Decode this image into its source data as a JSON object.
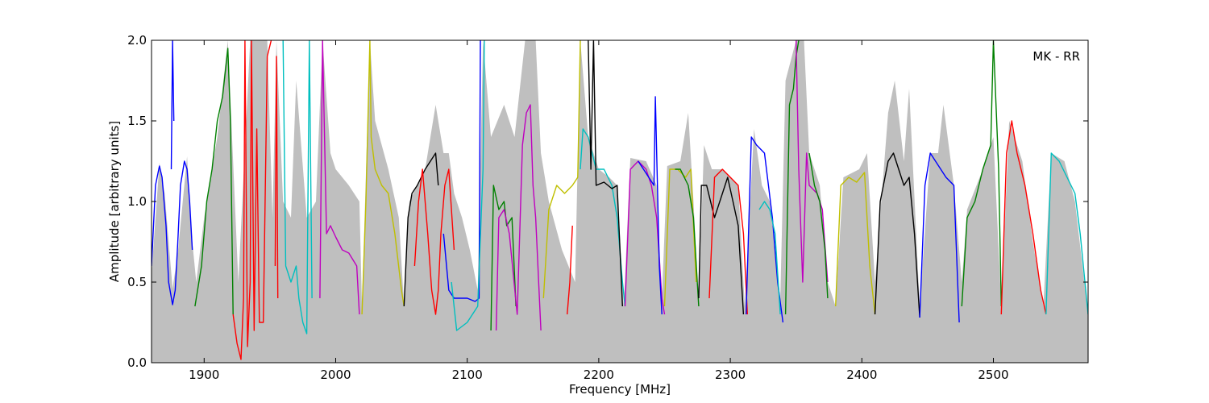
{
  "chart_data": {
    "type": "line",
    "title": "",
    "xlabel": "Frequency [MHz]",
    "ylabel": "Amplitude [arbitrary units]",
    "xlim": [
      1860,
      2572
    ],
    "ylim": [
      0.0,
      2.0
    ],
    "xticks": [
      1900,
      2000,
      2100,
      2200,
      2300,
      2400,
      2500
    ],
    "yticks": [
      0.0,
      0.5,
      1.0,
      1.5,
      2.0
    ],
    "xtick_labels": [
      "1900",
      "2000",
      "2100",
      "2200",
      "2300",
      "2400",
      "2500"
    ],
    "ytick_labels": [
      "0.0",
      "0.5",
      "1.0",
      "1.5",
      "2.0"
    ],
    "annotation": "MK - RR",
    "annotation_position": "top-right",
    "grid": false,
    "legend": "none",
    "envelope_color": "#bfbfbf",
    "envelope": [
      [
        1860,
        0.55
      ],
      [
        1866,
        1.24
      ],
      [
        1870,
        1.05
      ],
      [
        1876,
        0.46
      ],
      [
        1880,
        0.68
      ],
      [
        1887,
        1.28
      ],
      [
        1891,
        0.75
      ],
      [
        1894,
        0.5
      ],
      [
        1900,
        0.9
      ],
      [
        1910,
        1.4
      ],
      [
        1918,
        2.0
      ],
      [
        1926,
        0.5
      ],
      [
        1935,
        2.0
      ],
      [
        1948,
        2.0
      ],
      [
        1952,
        0.9
      ],
      [
        1955,
        2.0
      ],
      [
        1960,
        1.0
      ],
      [
        1966,
        0.9
      ],
      [
        1970,
        1.75
      ],
      [
        1978,
        0.9
      ],
      [
        1985,
        1.0
      ],
      [
        1990,
        2.0
      ],
      [
        1996,
        1.3
      ],
      [
        2000,
        1.2
      ],
      [
        2010,
        1.1
      ],
      [
        2018,
        1.0
      ],
      [
        2020,
        0.35
      ],
      [
        2026,
        2.0
      ],
      [
        2030,
        1.5
      ],
      [
        2040,
        1.2
      ],
      [
        2048,
        0.9
      ],
      [
        2052,
        0.35
      ],
      [
        2056,
        1.0
      ],
      [
        2062,
        1.1
      ],
      [
        2068,
        1.2
      ],
      [
        2076,
        1.6
      ],
      [
        2082,
        1.3
      ],
      [
        2086,
        1.3
      ],
      [
        2090,
        1.05
      ],
      [
        2096,
        0.9
      ],
      [
        2102,
        0.7
      ],
      [
        2108,
        0.45
      ],
      [
        2112,
        2.0
      ],
      [
        2118,
        1.4
      ],
      [
        2128,
        1.6
      ],
      [
        2136,
        1.4
      ],
      [
        2144,
        2.0
      ],
      [
        2152,
        2.0
      ],
      [
        2156,
        1.3
      ],
      [
        2162,
        1.0
      ],
      [
        2172,
        0.7
      ],
      [
        2182,
        0.5
      ],
      [
        2186,
        2.0
      ],
      [
        2192,
        1.4
      ],
      [
        2200,
        1.2
      ],
      [
        2208,
        1.15
      ],
      [
        2214,
        1.1
      ],
      [
        2219,
        0.35
      ],
      [
        2224,
        1.27
      ],
      [
        2236,
        1.25
      ],
      [
        2244,
        1.1
      ],
      [
        2248,
        0.4
      ],
      [
        2252,
        1.22
      ],
      [
        2262,
        1.25
      ],
      [
        2268,
        1.55
      ],
      [
        2272,
        1.0
      ],
      [
        2276,
        0.35
      ],
      [
        2280,
        1.35
      ],
      [
        2286,
        1.2
      ],
      [
        2294,
        1.2
      ],
      [
        2300,
        1.15
      ],
      [
        2306,
        1.1
      ],
      [
        2311,
        0.35
      ],
      [
        2318,
        1.45
      ],
      [
        2324,
        1.1
      ],
      [
        2330,
        1.0
      ],
      [
        2338,
        0.4
      ],
      [
        2342,
        1.75
      ],
      [
        2350,
        2.0
      ],
      [
        2356,
        2.0
      ],
      [
        2360,
        1.3
      ],
      [
        2368,
        1.1
      ],
      [
        2374,
        0.5
      ],
      [
        2380,
        0.35
      ],
      [
        2386,
        1.15
      ],
      [
        2398,
        1.2
      ],
      [
        2404,
        1.3
      ],
      [
        2410,
        0.5
      ],
      [
        2420,
        1.55
      ],
      [
        2425,
        1.75
      ],
      [
        2432,
        1.25
      ],
      [
        2436,
        1.7
      ],
      [
        2444,
        0.35
      ],
      [
        2452,
        1.3
      ],
      [
        2458,
        1.3
      ],
      [
        2462,
        1.6
      ],
      [
        2470,
        1.1
      ],
      [
        2476,
        0.5
      ],
      [
        2480,
        0.95
      ],
      [
        2492,
        1.2
      ],
      [
        2500,
        1.4
      ],
      [
        2506,
        0.35
      ],
      [
        2512,
        1.5
      ],
      [
        2522,
        1.25
      ],
      [
        2530,
        0.75
      ],
      [
        2538,
        0.35
      ],
      [
        2544,
        1.3
      ],
      [
        2554,
        1.25
      ],
      [
        2562,
        1.0
      ],
      [
        2572,
        0.3
      ]
    ],
    "series": [
      {
        "color": "#0000ff",
        "x": [
          1860,
          1863,
          1866,
          1868,
          1871,
          1873,
          1876,
          1878,
          1880,
          1882,
          1885,
          1887,
          1889,
          1891
        ],
        "y": [
          0.6,
          1.1,
          1.22,
          1.15,
          0.85,
          0.5,
          0.36,
          0.45,
          0.75,
          1.1,
          1.25,
          1.2,
          1.0,
          0.7
        ]
      },
      {
        "color": "#0000ff",
        "x": [
          1875,
          1876,
          1877
        ],
        "y": [
          1.2,
          2.0,
          1.5
        ]
      },
      {
        "color": "#008000",
        "x": [
          1893,
          1898,
          1902,
          1906,
          1910,
          1914,
          1918,
          1920,
          1922
        ],
        "y": [
          0.35,
          0.6,
          1.0,
          1.2,
          1.5,
          1.65,
          1.95,
          1.5,
          0.3
        ]
      },
      {
        "color": "#ff0000",
        "x": [
          1922,
          1925,
          1928,
          1930,
          1931,
          1933,
          1935,
          1936,
          1938,
          1940,
          1942,
          1945,
          1948,
          1951
        ],
        "y": [
          0.3,
          0.12,
          0.02,
          0.4,
          2.0,
          0.1,
          0.5,
          2.0,
          0.2,
          1.45,
          0.25,
          0.25,
          1.9,
          2.0
        ]
      },
      {
        "color": "#ff0000",
        "x": [
          1954,
          1955,
          1956
        ],
        "y": [
          0.6,
          1.9,
          0.4
        ]
      },
      {
        "color": "#00bfbf",
        "x": [
          1960,
          1962,
          1966,
          1970,
          1972,
          1975,
          1978,
          1980,
          1982
        ],
        "y": [
          2.0,
          0.6,
          0.5,
          0.6,
          0.4,
          0.25,
          0.18,
          2.0,
          0.4
        ]
      },
      {
        "color": "#bf00bf",
        "x": [
          1988,
          1990,
          1993,
          1996,
          2000,
          2005,
          2010,
          2016,
          2018
        ],
        "y": [
          0.4,
          2.0,
          0.8,
          0.85,
          0.78,
          0.7,
          0.68,
          0.6,
          0.3
        ]
      },
      {
        "color": "#bfbf00",
        "x": [
          2020,
          2023,
          2026,
          2027,
          2030,
          2035,
          2040,
          2045,
          2050,
          2052
        ],
        "y": [
          0.3,
          1.0,
          2.0,
          1.4,
          1.2,
          1.1,
          1.05,
          0.8,
          0.45,
          0.35
        ]
      },
      {
        "color": "#000000",
        "x": [
          2052,
          2055,
          2058,
          2062,
          2068,
          2072,
          2076,
          2078
        ],
        "y": [
          0.35,
          0.9,
          1.05,
          1.1,
          1.2,
          1.25,
          1.3,
          1.1
        ]
      },
      {
        "color": "#ff0000",
        "x": [
          2060,
          2063,
          2066,
          2070,
          2073,
          2076,
          2078,
          2080,
          2083,
          2086,
          2090
        ],
        "y": [
          0.6,
          1.0,
          1.2,
          0.8,
          0.45,
          0.3,
          0.45,
          0.8,
          1.1,
          1.2,
          0.7
        ]
      },
      {
        "color": "#0000ff",
        "x": [
          2082,
          2086,
          2090,
          2100,
          2106,
          2109,
          2110
        ],
        "y": [
          0.8,
          0.45,
          0.4,
          0.4,
          0.38,
          0.4,
          2.0
        ]
      },
      {
        "color": "#00bfbf",
        "x": [
          2088,
          2092,
          2100,
          2108,
          2112,
          2113
        ],
        "y": [
          0.5,
          0.2,
          0.25,
          0.35,
          1.2,
          2.0
        ]
      },
      {
        "color": "#008000",
        "x": [
          2118,
          2120,
          2124,
          2128,
          2130,
          2134,
          2137
        ],
        "y": [
          0.2,
          1.1,
          0.95,
          1.0,
          0.85,
          0.9,
          0.35
        ]
      },
      {
        "color": "#bf00bf",
        "x": [
          2122,
          2124,
          2128,
          2132,
          2138,
          2142,
          2145,
          2148,
          2150,
          2152,
          2156
        ],
        "y": [
          0.2,
          0.9,
          0.95,
          0.8,
          0.3,
          1.35,
          1.55,
          1.6,
          1.1,
          0.9,
          0.2
        ]
      },
      {
        "color": "#bfbf00",
        "x": [
          2158,
          2162,
          2168,
          2174,
          2180,
          2184,
          2186
        ],
        "y": [
          0.4,
          0.95,
          1.1,
          1.05,
          1.1,
          1.15,
          2.0
        ]
      },
      {
        "color": "#ff0000",
        "x": [
          2176,
          2178,
          2180
        ],
        "y": [
          0.3,
          0.5,
          0.85
        ]
      },
      {
        "color": "#00bfbf",
        "x": [
          2186,
          2188,
          2192,
          2198,
          2204,
          2210,
          2214,
          2218,
          2220
        ],
        "y": [
          1.2,
          1.45,
          1.4,
          1.2,
          1.2,
          1.1,
          0.9,
          0.5,
          0.35
        ]
      },
      {
        "color": "#000000",
        "x": [
          2192,
          2194,
          2196,
          2198,
          2204,
          2210,
          2214,
          2218
        ],
        "y": [
          2.0,
          1.2,
          2.0,
          1.1,
          1.12,
          1.08,
          1.1,
          0.35
        ]
      },
      {
        "color": "#bf00bf",
        "x": [
          2220,
          2224,
          2230,
          2236,
          2240,
          2244,
          2248,
          2250
        ],
        "y": [
          0.35,
          1.2,
          1.25,
          1.2,
          1.1,
          0.9,
          0.4,
          0.3
        ]
      },
      {
        "color": "#0000ff",
        "x": [
          2230,
          2234,
          2238,
          2242,
          2243,
          2246,
          2248
        ],
        "y": [
          1.25,
          1.2,
          1.15,
          1.1,
          1.65,
          0.6,
          0.3
        ]
      },
      {
        "color": "#bfbf00",
        "x": [
          2250,
          2254,
          2260,
          2266,
          2270,
          2274
        ],
        "y": [
          0.35,
          1.2,
          1.2,
          1.15,
          1.2,
          0.5
        ]
      },
      {
        "color": "#008000",
        "x": [
          2258,
          2262,
          2268,
          2272,
          2276
        ],
        "y": [
          1.2,
          1.2,
          1.1,
          0.9,
          0.35
        ]
      },
      {
        "color": "#000000",
        "x": [
          2276,
          2278,
          2282,
          2288,
          2294,
          2298,
          2302,
          2306,
          2310
        ],
        "y": [
          0.4,
          1.1,
          1.1,
          0.9,
          1.05,
          1.15,
          1.0,
          0.85,
          0.3
        ]
      },
      {
        "color": "#ff0000",
        "x": [
          2284,
          2288,
          2294,
          2300,
          2306,
          2310,
          2313
        ],
        "y": [
          0.4,
          1.15,
          1.2,
          1.15,
          1.1,
          0.8,
          0.3
        ]
      },
      {
        "color": "#0000ff",
        "x": [
          2312,
          2316,
          2320,
          2326,
          2332,
          2336,
          2340
        ],
        "y": [
          0.3,
          1.4,
          1.35,
          1.3,
          0.9,
          0.5,
          0.25
        ]
      },
      {
        "color": "#00bfbf",
        "x": [
          2322,
          2326,
          2330,
          2334,
          2338
        ],
        "y": [
          0.95,
          1.0,
          0.95,
          0.8,
          0.3
        ]
      },
      {
        "color": "#008000",
        "x": [
          2342,
          2345,
          2348,
          2350,
          2352
        ],
        "y": [
          0.3,
          1.6,
          1.7,
          1.9,
          2.0
        ]
      },
      {
        "color": "#bf00bf",
        "x": [
          2350,
          2352,
          2355,
          2358,
          2360,
          2366,
          2370,
          2374
        ],
        "y": [
          2.0,
          1.2,
          0.5,
          1.3,
          1.1,
          1.05,
          0.95,
          0.5
        ]
      },
      {
        "color": "#008000",
        "x": [
          2360,
          2364,
          2368,
          2372,
          2374
        ],
        "y": [
          1.3,
          1.1,
          1.0,
          0.7,
          0.4
        ]
      },
      {
        "color": "#bfbf00",
        "x": [
          2380,
          2384,
          2390,
          2396,
          2402,
          2406,
          2410
        ],
        "y": [
          0.35,
          1.1,
          1.15,
          1.12,
          1.18,
          0.6,
          0.3
        ]
      },
      {
        "color": "#000000",
        "x": [
          2410,
          2414,
          2420,
          2424,
          2428,
          2432,
          2436,
          2440,
          2444
        ],
        "y": [
          0.3,
          1.0,
          1.25,
          1.3,
          1.2,
          1.1,
          1.15,
          0.8,
          0.28
        ]
      },
      {
        "color": "#0000ff",
        "x": [
          2444,
          2448,
          2452,
          2456,
          2460,
          2464,
          2470,
          2474
        ],
        "y": [
          0.28,
          1.1,
          1.3,
          1.25,
          1.2,
          1.15,
          1.1,
          0.25
        ]
      },
      {
        "color": "#008000",
        "x": [
          2476,
          2480,
          2486,
          2492,
          2498,
          2500,
          2504,
          2506
        ],
        "y": [
          0.35,
          0.9,
          1.0,
          1.2,
          1.35,
          2.0,
          1.2,
          0.35
        ]
      },
      {
        "color": "#ff0000",
        "x": [
          2506,
          2510,
          2514,
          2518,
          2524,
          2530,
          2536,
          2540
        ],
        "y": [
          0.3,
          1.3,
          1.5,
          1.3,
          1.1,
          0.8,
          0.45,
          0.3
        ]
      },
      {
        "color": "#00bfbf",
        "x": [
          2540,
          2544,
          2550,
          2556,
          2562,
          2566,
          2572
        ],
        "y": [
          0.3,
          1.3,
          1.25,
          1.15,
          1.05,
          0.8,
          0.3
        ]
      }
    ]
  }
}
